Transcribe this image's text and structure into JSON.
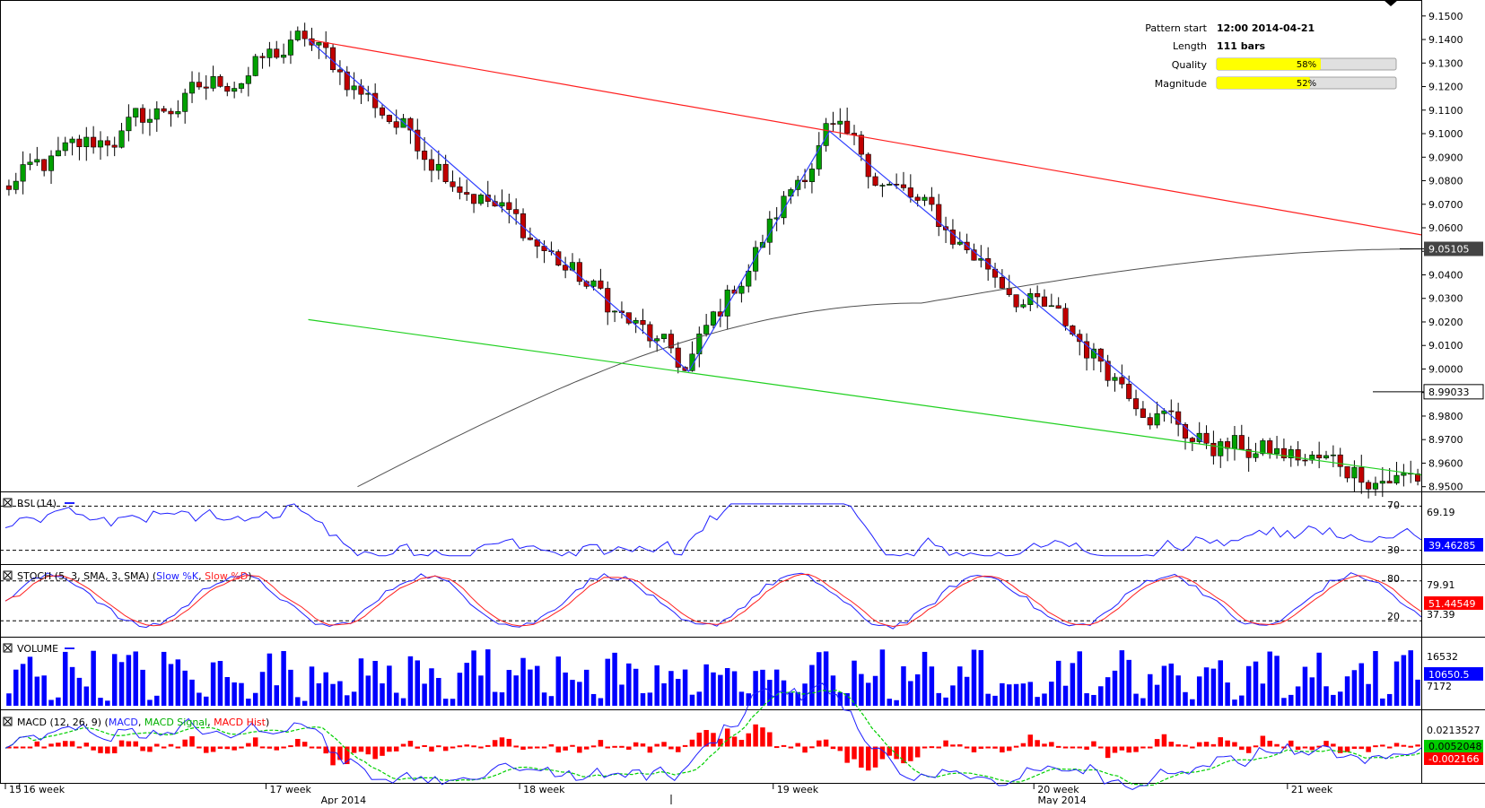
{
  "pattern_info": {
    "rows": [
      {
        "label": "Pattern start",
        "value": "12:00 2014-04-21"
      },
      {
        "label": "Length",
        "value": "111 bars"
      }
    ],
    "quality": {
      "label": "Quality",
      "text": "58%",
      "fraction": 0.58
    },
    "magnitude": {
      "label": "Magnitude",
      "text": "52%",
      "fraction": 0.52
    },
    "bar_color": "#ffff00"
  },
  "colors": {
    "bull": "#00a000",
    "bear": "#c00000",
    "resistance": "#ff2020",
    "support": "#20d020",
    "zigzag": "#3040ff",
    "sma": "#505050",
    "volume": "#0000ff",
    "rsi": "#2020ff",
    "stoch_k": "#2020ff",
    "stoch_d": "#ff2020",
    "macd_line": "#2020ff",
    "macd_signal": "#00d000",
    "macd_hist": "#ff0000"
  },
  "chart_data": {
    "type": "candlestick",
    "price_axis": {
      "ticks": [
        "9.1500",
        "9.1400",
        "9.1300",
        "9.1200",
        "9.1100",
        "9.1000",
        "9.0900",
        "9.0800",
        "9.0700",
        "9.0600",
        "9.0500",
        "9.0400",
        "9.0300",
        "9.0200",
        "9.0100",
        "9.0000",
        "8.9900",
        "8.9800",
        "8.9700",
        "8.9600",
        "8.9500"
      ],
      "ylim": [
        8.9495,
        9.1545
      ],
      "current_price_label": "8.99033",
      "current_price": 8.99033,
      "sma_label": "9.05105",
      "sma_value": 9.05105
    },
    "time_axis": {
      "week_labels": [
        "15",
        "16 week",
        "17 week",
        "18 week",
        "19 week",
        "20 week",
        "21 week"
      ],
      "week_positions": [
        0,
        2,
        37,
        73,
        109,
        146,
        182
      ],
      "month_labels": [
        "Apr 2014",
        "May 2014"
      ],
      "month_positions": [
        48,
        150
      ],
      "bar_count": 201
    },
    "pivots": [
      [
        0,
        9.076
      ],
      [
        43,
        9.139
      ],
      [
        97,
        8.999
      ],
      [
        117,
        9.101
      ],
      [
        170,
        8.969
      ],
      [
        201,
        8.953
      ]
    ],
    "trendlines": {
      "resistance": [
        [
          43,
          9.14
        ],
        [
          201,
          9.057
        ]
      ],
      "support": [
        [
          43,
          9.021
        ],
        [
          201,
          8.955
        ]
      ],
      "zigzag": [
        [
          43,
          9.14
        ],
        [
          97,
          8.999
        ],
        [
          117,
          9.101
        ],
        [
          170,
          8.969
        ]
      ]
    },
    "sma200": {
      "start_index": 50,
      "start_value": 8.95,
      "mid_index": 130,
      "mid_value": 9.028,
      "end_index": 201,
      "end_value": 9.051
    },
    "rsi": {
      "title": "RSI (14)",
      "levels": [
        "70",
        "30"
      ],
      "ylim": [
        20,
        80
      ],
      "last_label": "39.46285",
      "last_value": 39.46285,
      "high_label": "69.19"
    },
    "stoch": {
      "title": "STOCH (5, 3, SMA, 3, SMA)",
      "k_label": "Slow %K",
      "d_label": "Slow %D",
      "levels": [
        "80",
        "20"
      ],
      "ylim": [
        0,
        100
      ],
      "k_last_label": "51.44549",
      "high_label": "79.91",
      "low_label": "37.39"
    },
    "volume": {
      "title": "VOLUME",
      "ticks": [
        "16532",
        "7172"
      ],
      "last_label": "10650.5",
      "max": 18500
    },
    "macd": {
      "title": "MACD (12, 26, 9)",
      "macd_label": "MACD",
      "signal_label": "MACD Signal",
      "hist_label": "MACD Hist",
      "top_label": "0.0213527",
      "signal_last_label": "0.0052048",
      "hist_last_label": "-0.002166",
      "ylim": [
        -0.03,
        0.03
      ]
    }
  }
}
